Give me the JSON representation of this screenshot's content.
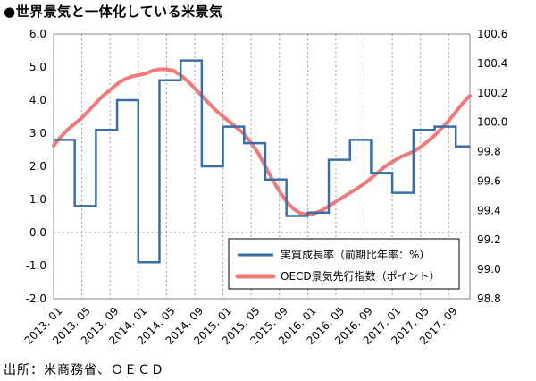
{
  "title": "●世界景気と一体化している米景気",
  "source": "出所：米商務省、ＯＥＣＤ",
  "chart_data": {
    "type": "line",
    "x": [
      "2013.01",
      "2013.02",
      "2013.03",
      "2013.04",
      "2013.05",
      "2013.06",
      "2013.07",
      "2013.08",
      "2013.09",
      "2013.10",
      "2013.11",
      "2013.12",
      "2014.01",
      "2014.02",
      "2014.03",
      "2014.04",
      "2014.05",
      "2014.06",
      "2014.07",
      "2014.08",
      "2014.09",
      "2014.10",
      "2014.11",
      "2014.12",
      "2015.01",
      "2015.02",
      "2015.03",
      "2015.04",
      "2015.05",
      "2015.06",
      "2015.07",
      "2015.08",
      "2015.09",
      "2015.10",
      "2015.11",
      "2015.12",
      "2016.01",
      "2016.02",
      "2016.03",
      "2016.04",
      "2016.05",
      "2016.06",
      "2016.07",
      "2016.08",
      "2016.09",
      "2016.10",
      "2016.11",
      "2016.12",
      "2017.01",
      "2017.02",
      "2017.03",
      "2017.04",
      "2017.05",
      "2017.06",
      "2017.07",
      "2017.08",
      "2017.09",
      "2017.10",
      "2017.11",
      "2017.12"
    ],
    "x_tick_labels": [
      "2013. 01",
      "2013. 05",
      "2013. 09",
      "2014. 01",
      "2014. 05",
      "2014. 09",
      "2015. 01",
      "2015. 05",
      "2015. 09",
      "2016. 01",
      "2016. 05",
      "2016. 09",
      "2017. 01",
      "2017. 05",
      "2017. 09"
    ],
    "y_left": {
      "ylim": [
        -2.0,
        6.0
      ],
      "ticks": [
        "-2.0",
        "-1.0",
        "0.0",
        "1.0",
        "2.0",
        "3.0",
        "4.0",
        "5.0",
        "6.0"
      ]
    },
    "y_right": {
      "ylim": [
        98.8,
        100.6
      ],
      "ticks": [
        "98.8",
        "99.0",
        "99.2",
        "99.4",
        "99.6",
        "99.8",
        "100.0",
        "100.2",
        "100.4",
        "100.6"
      ]
    },
    "grid": "vertical dotted",
    "legend_position": "bottom-right",
    "series": [
      {
        "name": "実質成長率（前期比年率：%）",
        "axis": "left",
        "color": "#3a6ea5",
        "step": true,
        "values": [
          2.8,
          2.8,
          2.8,
          0.8,
          0.8,
          0.8,
          3.1,
          3.1,
          3.1,
          4.0,
          4.0,
          4.0,
          -0.9,
          -0.9,
          -0.9,
          4.6,
          4.6,
          4.6,
          5.2,
          5.2,
          5.2,
          2.0,
          2.0,
          2.0,
          3.2,
          3.2,
          3.2,
          2.7,
          2.7,
          2.7,
          1.6,
          1.6,
          1.6,
          0.5,
          0.5,
          0.5,
          0.6,
          0.6,
          0.6,
          2.2,
          2.2,
          2.2,
          2.8,
          2.8,
          2.8,
          1.8,
          1.8,
          1.8,
          1.2,
          1.2,
          1.2,
          3.1,
          3.1,
          3.1,
          3.2,
          3.2,
          3.2,
          2.6,
          2.6,
          2.6
        ]
      },
      {
        "name": "OECD景気先行指数（ポイント）",
        "axis": "right",
        "color": "#ee7a7a",
        "values": [
          99.84,
          99.9,
          99.95,
          99.99,
          100.03,
          100.08,
          100.13,
          100.18,
          100.22,
          100.26,
          100.29,
          100.31,
          100.32,
          100.33,
          100.35,
          100.36,
          100.36,
          100.35,
          100.32,
          100.28,
          100.23,
          100.18,
          100.13,
          100.08,
          100.04,
          100.0,
          99.96,
          99.92,
          99.86,
          99.79,
          99.7,
          99.61,
          99.53,
          99.46,
          99.41,
          99.38,
          99.37,
          99.38,
          99.4,
          99.43,
          99.46,
          99.49,
          99.52,
          99.55,
          99.58,
          99.62,
          99.66,
          99.7,
          99.73,
          99.76,
          99.78,
          99.8,
          99.83,
          99.87,
          99.91,
          99.96,
          100.01,
          100.07,
          100.13,
          100.18
        ]
      }
    ]
  }
}
